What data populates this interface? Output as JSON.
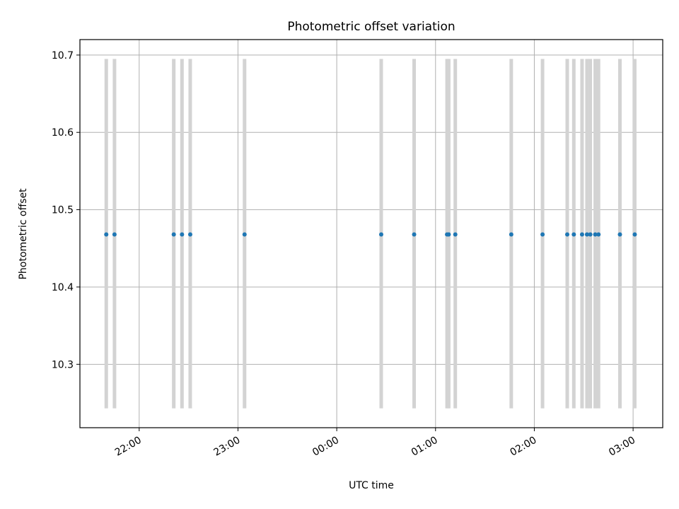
{
  "chart_data": {
    "type": "scatter",
    "title": "Photometric offset variation",
    "xlabel": "UTC time",
    "ylabel": "Photometric offset",
    "x_axis_type": "time",
    "x_range": [
      "21:24",
      "03:18"
    ],
    "ylim": [
      10.218,
      10.72
    ],
    "y_ticks": [
      10.3,
      10.4,
      10.5,
      10.6,
      10.7
    ],
    "x_ticks": [
      "22:00",
      "23:00",
      "00:00",
      "01:00",
      "02:00",
      "03:00"
    ],
    "grid": true,
    "marker_color": "#1f77b4",
    "errorbar_color": "#d3d3d3",
    "y_error_span": [
      10.243,
      10.695
    ],
    "points": [
      {
        "time": "21:40",
        "value": 10.468
      },
      {
        "time": "21:45",
        "value": 10.468
      },
      {
        "time": "22:21",
        "value": 10.468
      },
      {
        "time": "22:26",
        "value": 10.468
      },
      {
        "time": "22:31",
        "value": 10.468
      },
      {
        "time": "23:04",
        "value": 10.468
      },
      {
        "time": "00:27",
        "value": 10.468
      },
      {
        "time": "00:47",
        "value": 10.468
      },
      {
        "time": "01:07",
        "value": 10.468
      },
      {
        "time": "01:08",
        "value": 10.468
      },
      {
        "time": "01:12",
        "value": 10.468
      },
      {
        "time": "01:46",
        "value": 10.468
      },
      {
        "time": "02:05",
        "value": 10.468
      },
      {
        "time": "02:20",
        "value": 10.468
      },
      {
        "time": "02:24",
        "value": 10.468
      },
      {
        "time": "02:29",
        "value": 10.468
      },
      {
        "time": "02:32",
        "value": 10.468
      },
      {
        "time": "02:34",
        "value": 10.468
      },
      {
        "time": "02:37",
        "value": 10.468
      },
      {
        "time": "02:39",
        "value": 10.468
      },
      {
        "time": "02:52",
        "value": 10.468
      },
      {
        "time": "03:01",
        "value": 10.468
      }
    ]
  }
}
